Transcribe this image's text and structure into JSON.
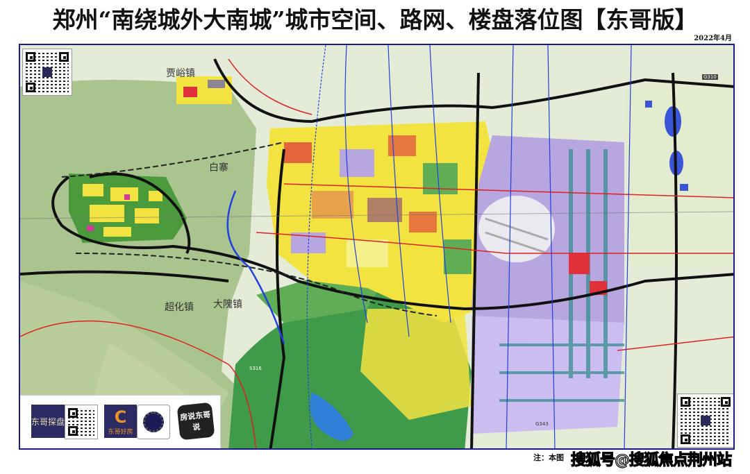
{
  "header": {
    "title": "郑州“南绕城外大南城”城市空间、路网、楼盘落位图【东哥版】",
    "date": "2022年4月"
  },
  "map": {
    "places": [
      "贾峪镇",
      "白寨",
      "超化镇",
      "大隗镇"
    ],
    "highway_labels": [
      "G310",
      "G343",
      "S316"
    ],
    "colors": {
      "terrain": "#a9c48e",
      "hills": "#3f9a4a",
      "residential": "#f2e341",
      "commercial": "#e0303a",
      "industrial": "#b7a6e0",
      "water": "#2f7fd6",
      "expressway": "#111111",
      "arterial": "#e02020"
    }
  },
  "logos": {
    "brand1": "东哥探盘",
    "brand2": "东哥好房",
    "brand3": "房说东哥说"
  },
  "footer": {
    "note": "注：本图",
    "watermark": "搜狐号@搜狐焦点荆州站"
  }
}
